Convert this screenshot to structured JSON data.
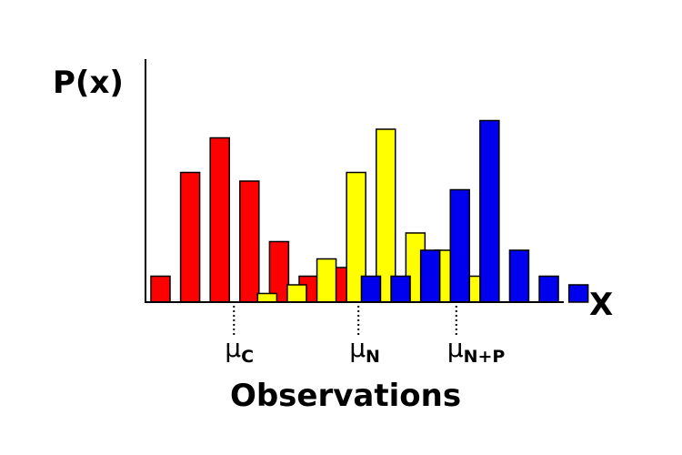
{
  "chart_data": {
    "type": "bar",
    "ylabel": "P(x)",
    "xlabel": "X",
    "caption": "Observations",
    "x_range": [
      0,
      14
    ],
    "y_range": [
      0,
      10.5
    ],
    "grid": false,
    "legend": "none",
    "series": [
      {
        "color": "#ff0000",
        "points": [
          {
            "x": 0,
            "y": 1.5
          },
          {
            "x": 1,
            "y": 7.5
          },
          {
            "x": 2,
            "y": 9.5
          },
          {
            "x": 3,
            "y": 7.0
          },
          {
            "x": 4,
            "y": 3.5
          },
          {
            "x": 5,
            "y": 1.5
          },
          {
            "x": 6,
            "y": 2.0
          }
        ]
      },
      {
        "color": "#ffff00",
        "points": [
          {
            "x": 3.6,
            "y": 0.5
          },
          {
            "x": 4.6,
            "y": 1.0
          },
          {
            "x": 5.6,
            "y": 2.5
          },
          {
            "x": 6.6,
            "y": 7.5
          },
          {
            "x": 7.6,
            "y": 10.0
          },
          {
            "x": 8.6,
            "y": 4.0
          },
          {
            "x": 9.6,
            "y": 3.0
          },
          {
            "x": 10.6,
            "y": 1.5
          }
        ]
      },
      {
        "color": "#0000ee",
        "points": [
          {
            "x": 7.1,
            "y": 1.5
          },
          {
            "x": 8.1,
            "y": 1.5
          },
          {
            "x": 9.1,
            "y": 3.0
          },
          {
            "x": 10.1,
            "y": 6.5
          },
          {
            "x": 11.1,
            "y": 10.5
          },
          {
            "x": 12.1,
            "y": 3.0
          },
          {
            "x": 13.1,
            "y": 1.5
          },
          {
            "x": 14.1,
            "y": 1.0
          }
        ]
      }
    ],
    "markers": [
      {
        "x": 2.8,
        "symbol": "μ",
        "subscript": "C"
      },
      {
        "x": 7.0,
        "symbol": "μ",
        "subscript": "N"
      },
      {
        "x": 10.3,
        "symbol": "μ",
        "subscript": "N+P"
      }
    ]
  }
}
